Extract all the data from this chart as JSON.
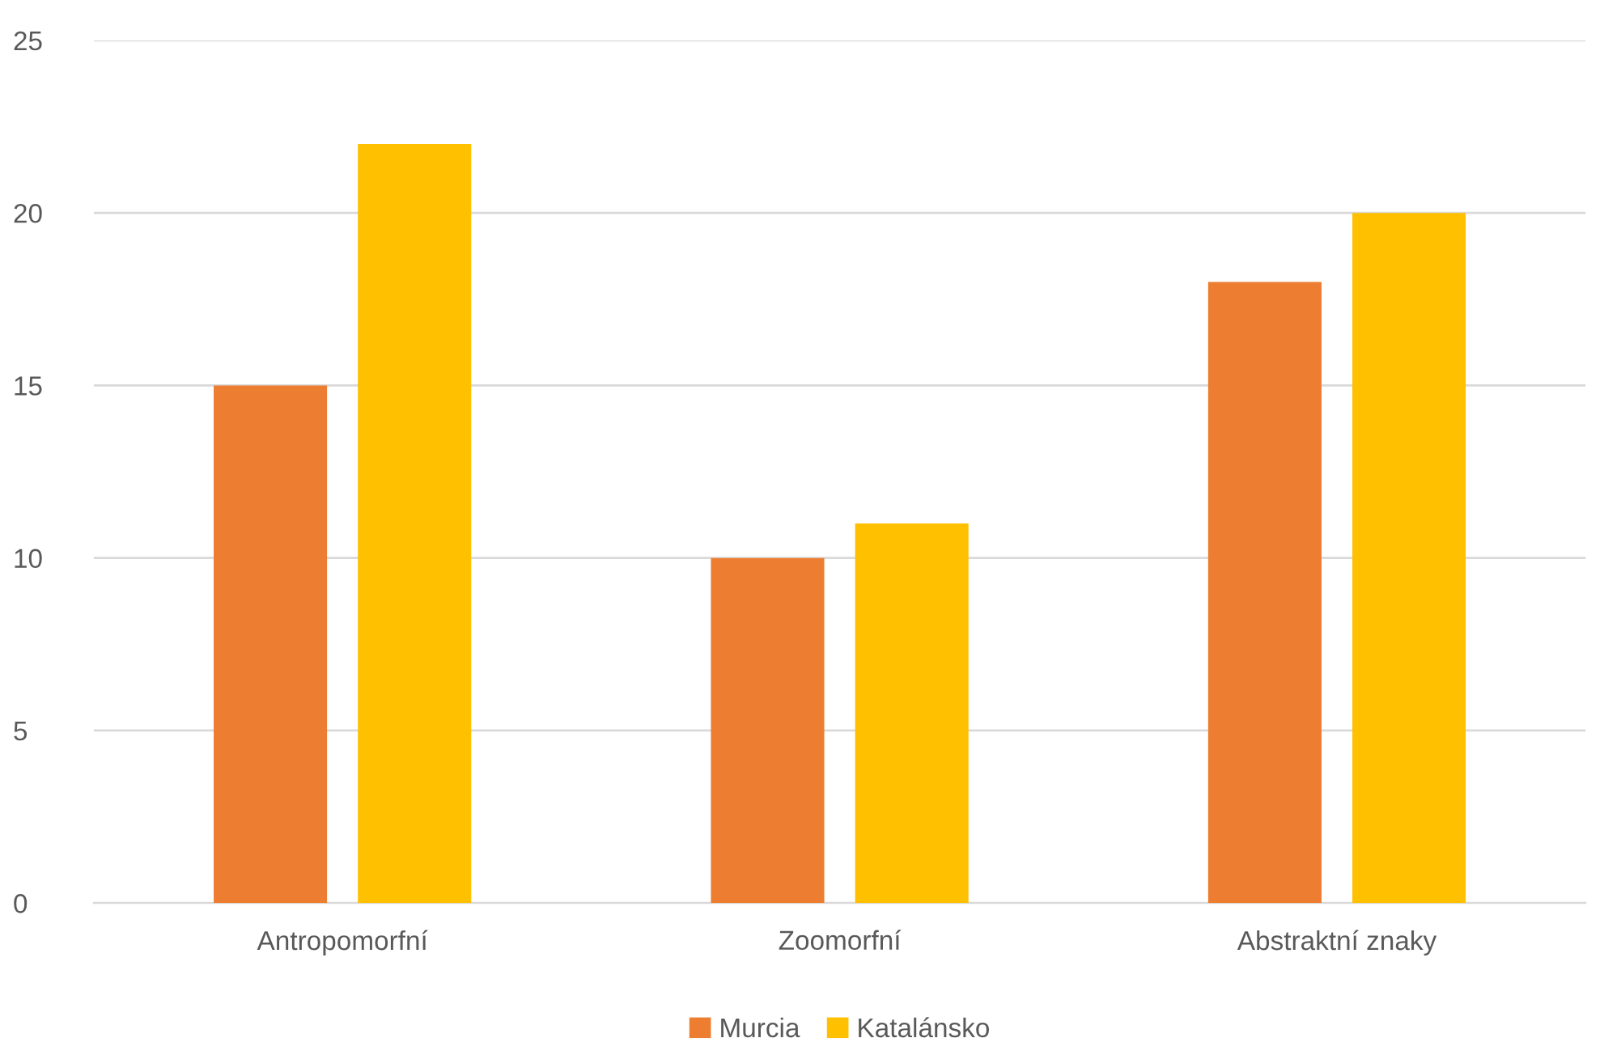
{
  "chart_data": {
    "type": "bar",
    "categories": [
      "Antropomorfní",
      "Zoomorfní",
      "Abstraktní znaky"
    ],
    "series": [
      {
        "name": "Murcia",
        "color": "#ed7d31",
        "values": [
          15,
          10,
          18
        ]
      },
      {
        "name": "Katalánsko",
        "color": "#ffc000",
        "values": [
          22,
          11,
          20
        ]
      }
    ],
    "ylim": [
      0,
      25
    ],
    "yticks": [
      0,
      5,
      10,
      15,
      20,
      25
    ],
    "grid": "y",
    "legend": "bottom"
  }
}
